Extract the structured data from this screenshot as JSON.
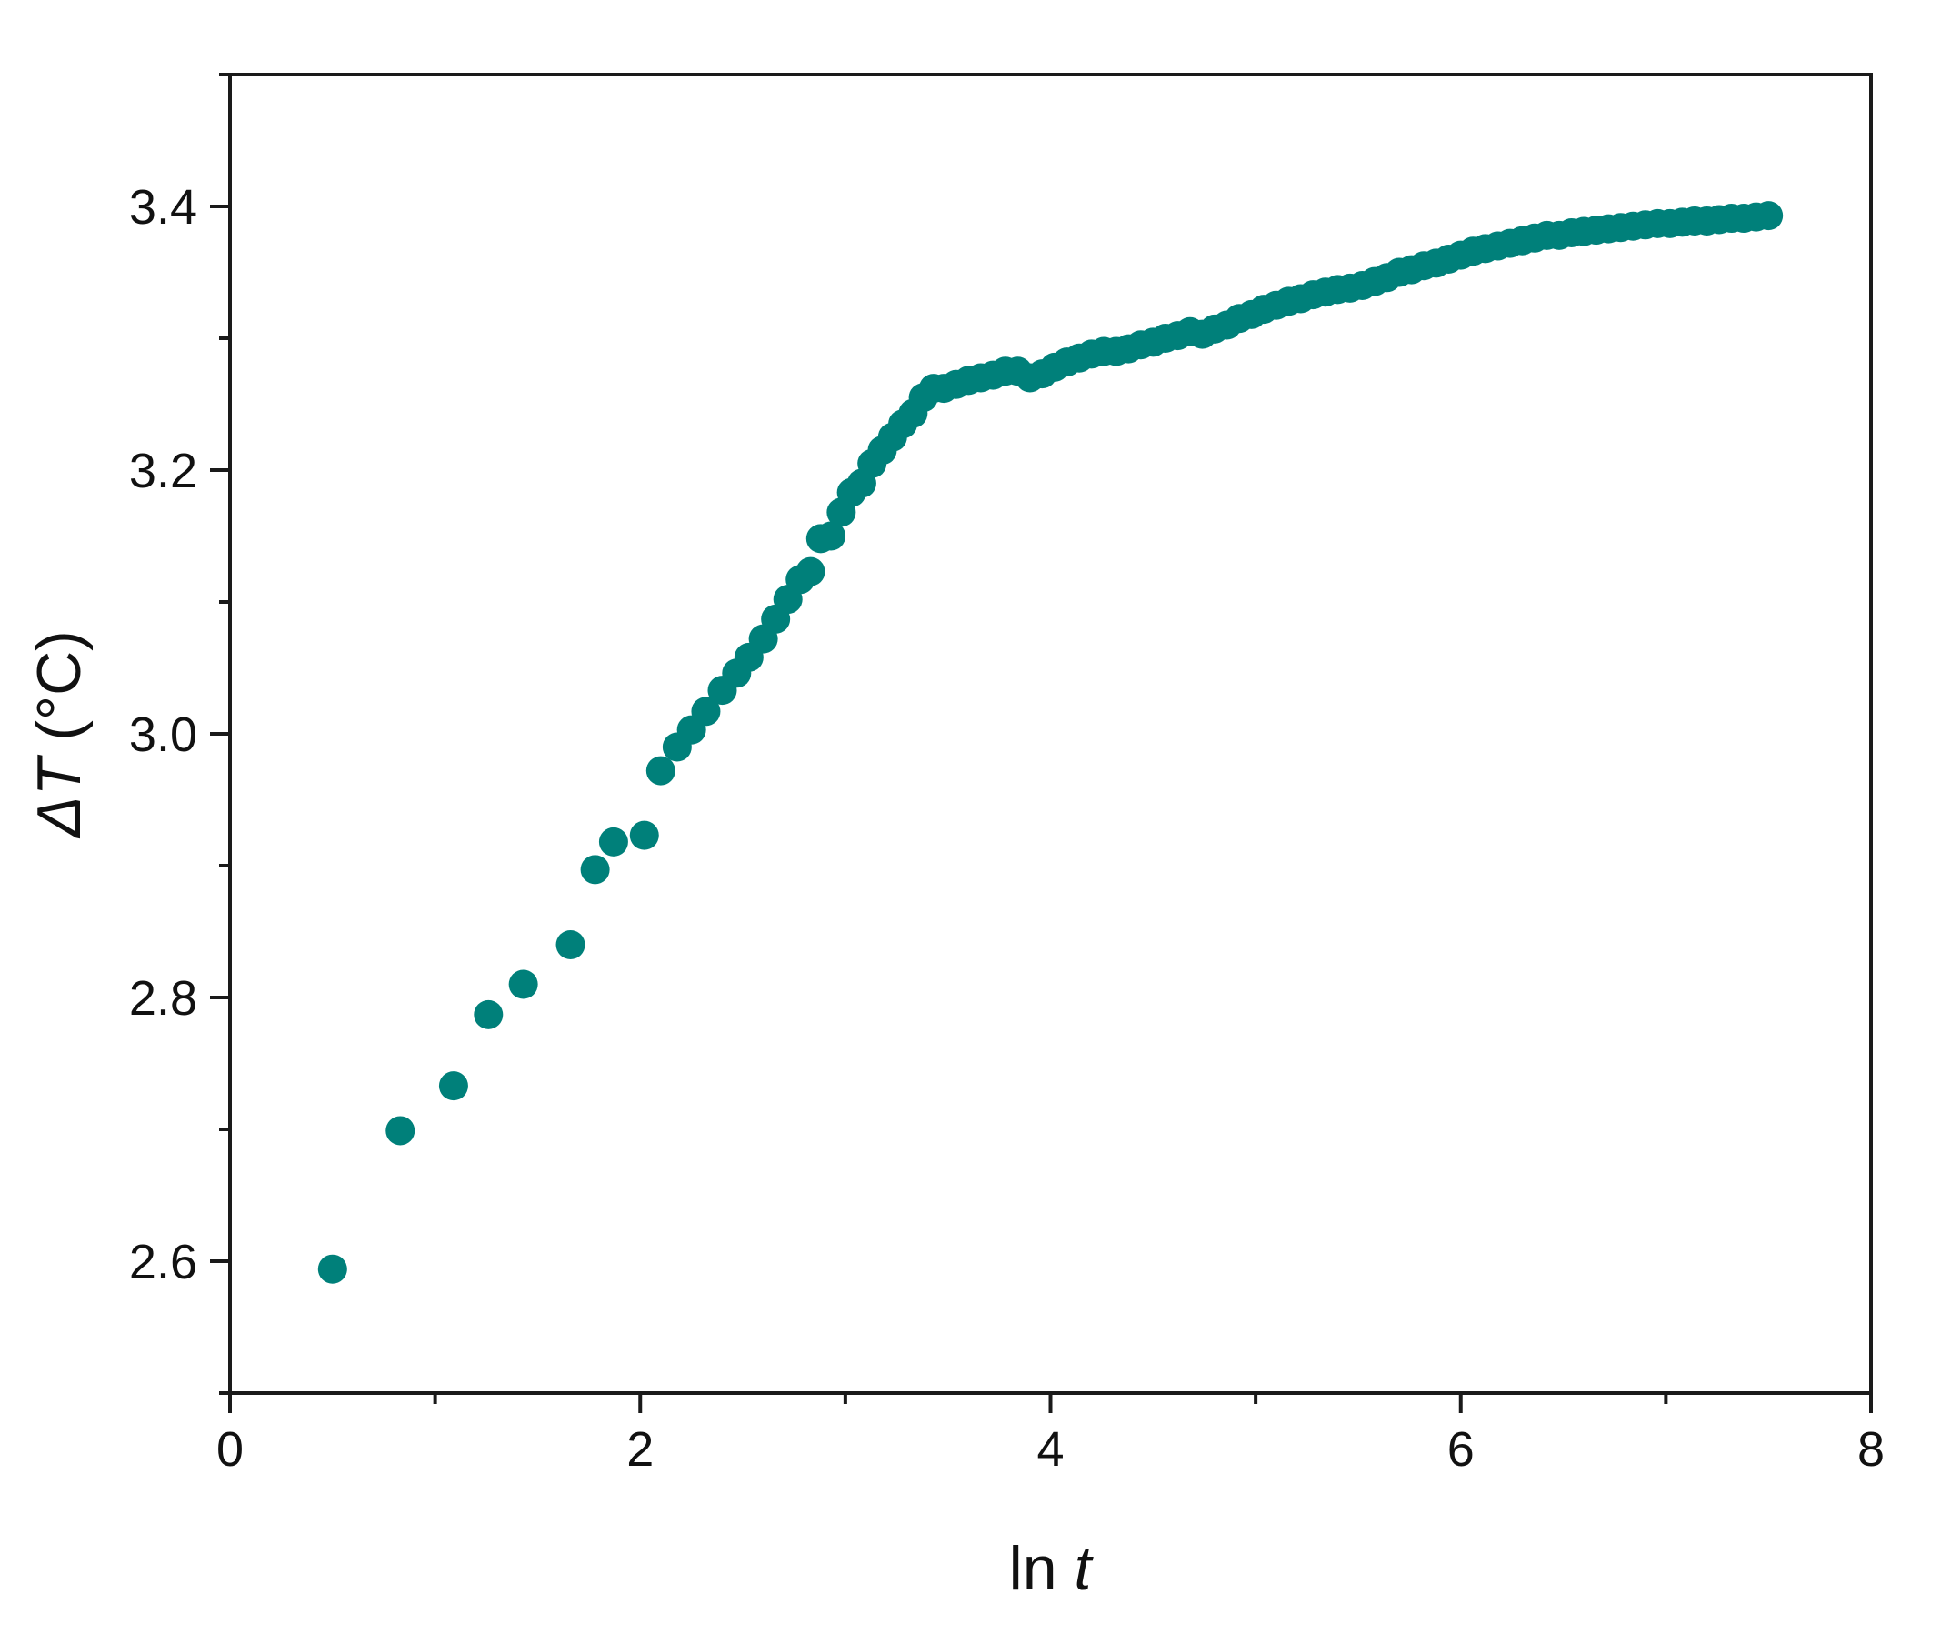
{
  "chart_data": {
    "type": "scatter",
    "xlabel_main": "ln ",
    "xlabel_var": "t",
    "ylabel_prefix": "ΔT",
    "ylabel_unit": " (°C)",
    "xlim": [
      0,
      8
    ],
    "ylim": [
      2.5,
      3.5
    ],
    "x_ticks": [
      0,
      2,
      4,
      6,
      8
    ],
    "x_minor_ticks": [
      1,
      3,
      5,
      7
    ],
    "y_ticks": [
      2.6,
      2.8,
      3.0,
      3.2,
      3.4
    ],
    "y_minor_ticks": [
      2.5,
      2.7,
      2.9,
      3.1,
      3.3,
      3.5
    ],
    "x_tick_labels": [
      "0",
      "2",
      "4",
      "6",
      "8"
    ],
    "y_tick_labels": [
      "2.6",
      "2.8",
      "3.0",
      "3.2",
      "3.4"
    ],
    "grid": false,
    "marker_color": "#00807A",
    "series": [
      {
        "x": [
          0.5,
          0.83,
          1.09,
          1.26,
          1.43,
          1.66,
          1.78,
          1.87,
          2.02,
          2.1,
          2.18,
          2.25,
          2.32,
          2.4,
          2.47,
          2.53,
          2.6,
          2.66,
          2.72,
          2.78,
          2.83,
          2.88,
          2.93,
          2.98,
          3.03,
          3.08,
          3.13,
          3.18,
          3.23,
          3.28,
          3.33,
          3.38,
          3.43,
          3.48,
          3.54,
          3.6,
          3.66,
          3.72,
          3.78,
          3.84,
          3.9,
          3.96,
          4.02,
          4.08,
          4.14,
          4.2,
          4.26,
          4.32,
          4.38,
          4.44,
          4.5,
          4.56,
          4.62,
          4.68,
          4.74,
          4.8,
          4.86,
          4.92,
          4.98,
          5.04,
          5.1,
          5.16,
          5.22,
          5.28,
          5.34,
          5.4,
          5.46,
          5.52,
          5.58,
          5.64,
          5.7,
          5.76,
          5.82,
          5.88,
          5.94,
          6.0,
          6.06,
          6.12,
          6.18,
          6.24,
          6.3,
          6.36,
          6.42,
          6.48,
          6.54,
          6.6,
          6.66,
          6.72,
          6.78,
          6.84,
          6.9,
          6.96,
          7.02,
          7.08,
          7.14,
          7.2,
          7.26,
          7.32,
          7.38,
          7.44,
          7.5
        ],
        "y": [
          2.594,
          2.699,
          2.733,
          2.787,
          2.81,
          2.84,
          2.897,
          2.918,
          2.923,
          2.972,
          2.99,
          3.003,
          3.017,
          3.033,
          3.046,
          3.058,
          3.072,
          3.087,
          3.102,
          3.117,
          3.123,
          3.148,
          3.15,
          3.168,
          3.183,
          3.19,
          3.205,
          3.215,
          3.225,
          3.235,
          3.243,
          3.255,
          3.262,
          3.262,
          3.265,
          3.268,
          3.27,
          3.272,
          3.275,
          3.275,
          3.27,
          3.273,
          3.278,
          3.282,
          3.285,
          3.288,
          3.29,
          3.29,
          3.292,
          3.295,
          3.297,
          3.3,
          3.302,
          3.305,
          3.303,
          3.307,
          3.31,
          3.315,
          3.318,
          3.322,
          3.325,
          3.328,
          3.33,
          3.333,
          3.335,
          3.337,
          3.338,
          3.34,
          3.343,
          3.346,
          3.35,
          3.352,
          3.355,
          3.357,
          3.36,
          3.363,
          3.366,
          3.368,
          3.37,
          3.372,
          3.374,
          3.376,
          3.378,
          3.378,
          3.38,
          3.381,
          3.382,
          3.383,
          3.384,
          3.385,
          3.386,
          3.387,
          3.387,
          3.388,
          3.389,
          3.389,
          3.39,
          3.391,
          3.391,
          3.392,
          3.393
        ]
      }
    ]
  }
}
